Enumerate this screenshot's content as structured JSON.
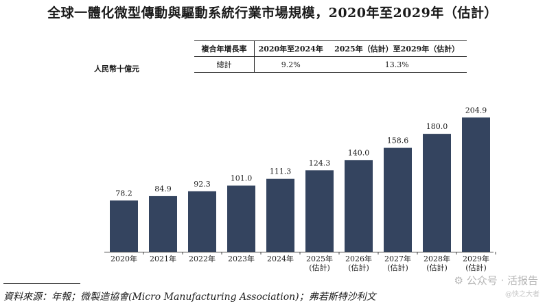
{
  "title": "全球一體化微型傳動與驅動系統行業市場規模，2020年至2029年（估計）",
  "unit_label": "人民幣十億元",
  "cagr_table": {
    "header": [
      "複合年增長率",
      "2020年至2024年",
      "2025年（估計）至2029年（估計）"
    ],
    "row": [
      "總計",
      "9.2%",
      "13.3%"
    ]
  },
  "chart_data": {
    "type": "bar",
    "categories": [
      "2020年",
      "2021年",
      "2022年",
      "2023年",
      "2024年",
      "2025年\n(估計)",
      "2026年\n(估計)",
      "2027年\n(估計)",
      "2028年\n(估計)",
      "2029年\n(估計)"
    ],
    "values": [
      78.2,
      84.9,
      92.3,
      101.0,
      111.3,
      124.3,
      140.0,
      158.6,
      180.0,
      204.9
    ],
    "value_labels": [
      "78.2",
      "84.9",
      "92.3",
      "101.0",
      "111.3",
      "124.3",
      "140.0",
      "158.6",
      "180.0",
      "204.9"
    ],
    "bar_color": "#34445f",
    "title": "全球一體化微型傳動與驅動系統行業市場規模，2020年至2029年（估計）",
    "ylabel": "人民幣十億元",
    "ylim": [
      0,
      210
    ]
  },
  "source": "資料來源：年報；微製造協會(Micro Manufacturing Association)；弗若斯特沙利文",
  "watermark": {
    "line1": "公众号 · 活报告",
    "line2": "@快之大者"
  }
}
